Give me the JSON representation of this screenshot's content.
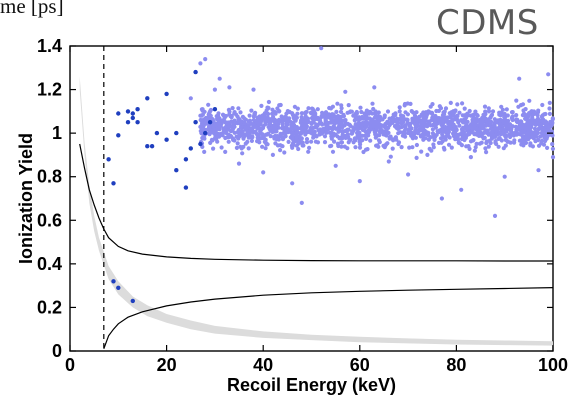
{
  "header": {
    "corner_text": "me [ps]",
    "brand": "CDMS"
  },
  "colors": {
    "band": "#dcdcdc",
    "nuclear_points": "#1f3fbf",
    "electron_points": "#8c8cf0",
    "curve": "#000000",
    "threshold": "#000000"
  },
  "chart_data": {
    "type": "scatter",
    "title": "",
    "xlabel": "Recoil Energy (keV)",
    "ylabel": "Ionization Yield",
    "xlim": [
      0,
      100
    ],
    "ylim": [
      0,
      1.4
    ],
    "xticks": [
      0,
      20,
      40,
      60,
      80,
      100
    ],
    "yticks": [
      0,
      0.2,
      0.4,
      0.6,
      0.8,
      1,
      1.2,
      1.4
    ],
    "xtick_labels": [
      "0",
      "20",
      "40",
      "60",
      "80",
      "100"
    ],
    "ytick_labels": [
      "0",
      "0.2",
      "0.4",
      "0.6",
      "0.8",
      "1",
      "1.2",
      "1.4"
    ],
    "grid": false,
    "legend": "none",
    "threshold_x": 7,
    "nuclear_band": {
      "x": [
        2,
        3,
        4,
        5,
        6,
        8,
        10,
        13,
        16,
        20,
        25,
        30,
        40,
        50,
        60,
        70,
        80,
        90,
        100
      ],
      "y_low": [
        1.2,
        0.9,
        0.68,
        0.55,
        0.46,
        0.33,
        0.26,
        0.2,
        0.16,
        0.13,
        0.1,
        0.08,
        0.06,
        0.05,
        0.04,
        0.035,
        0.03,
        0.027,
        0.025
      ],
      "y_high": [
        1.26,
        0.96,
        0.76,
        0.62,
        0.52,
        0.39,
        0.32,
        0.25,
        0.21,
        0.17,
        0.14,
        0.115,
        0.09,
        0.075,
        0.065,
        0.058,
        0.052,
        0.048,
        0.045
      ]
    },
    "curves": [
      {
        "x": [
          2,
          3,
          4,
          5,
          6,
          7,
          8,
          10,
          12,
          15,
          20,
          25,
          30,
          40,
          50,
          60,
          70,
          80,
          90,
          100
        ],
        "y": [
          0.95,
          0.84,
          0.74,
          0.67,
          0.61,
          0.56,
          0.52,
          0.48,
          0.46,
          0.445,
          0.432,
          0.425,
          0.421,
          0.417,
          0.415,
          0.414,
          0.414,
          0.414,
          0.413,
          0.413
        ]
      },
      {
        "x": [
          7,
          8,
          9,
          10,
          12,
          15,
          20,
          25,
          30,
          40,
          50,
          60,
          70,
          80,
          90,
          100
        ],
        "y": [
          0.01,
          0.07,
          0.1,
          0.125,
          0.155,
          0.18,
          0.207,
          0.225,
          0.238,
          0.256,
          0.267,
          0.274,
          0.279,
          0.283,
          0.287,
          0.291
        ]
      }
    ],
    "series": [
      {
        "points": [
          [
            8,
            0.88
          ],
          [
            9,
            0.77
          ],
          [
            10,
            1.09
          ],
          [
            10,
            0.99
          ],
          [
            12,
            1.05
          ],
          [
            12,
            1.1
          ],
          [
            13,
            1.07
          ],
          [
            13,
            1.09
          ],
          [
            14,
            1.05
          ],
          [
            14,
            1.11
          ],
          [
            16,
            0.94
          ],
          [
            16,
            1.16
          ],
          [
            17,
            0.94
          ],
          [
            18,
            1.0
          ],
          [
            20,
            0.97
          ],
          [
            20,
            1.18
          ],
          [
            22,
            0.83
          ],
          [
            22,
            1.0
          ],
          [
            24,
            0.75
          ],
          [
            24,
            0.88
          ],
          [
            25,
            0.93
          ],
          [
            26,
            1.05
          ],
          [
            26,
            1.28
          ],
          [
            27,
            0.95
          ],
          [
            28,
            1.0
          ],
          [
            29,
            1.05
          ],
          [
            30,
            1.11
          ],
          [
            9,
            0.32
          ],
          [
            10,
            0.29
          ],
          [
            13,
            0.23
          ]
        ]
      },
      {
        "center": 1.03,
        "spread": 0.045,
        "x_range": [
          27,
          100
        ],
        "count": 1800,
        "points": [
          [
            25,
            1.16
          ],
          [
            26,
            1.05
          ],
          [
            27,
            1.08
          ],
          [
            27,
            1.32
          ],
          [
            28,
            1.34
          ],
          [
            29,
            1.1
          ],
          [
            30,
            1.2
          ],
          [
            31,
            1.25
          ],
          [
            33,
            1.21
          ],
          [
            35,
            0.86
          ],
          [
            37,
            0.93
          ],
          [
            40,
            0.82
          ],
          [
            42,
            0.9
          ],
          [
            46,
            0.77
          ],
          [
            48,
            0.68
          ],
          [
            52,
            1.39
          ],
          [
            55,
            0.85
          ],
          [
            60,
            0.78
          ],
          [
            63,
            1.21
          ],
          [
            66,
            0.87
          ],
          [
            70,
            0.81
          ],
          [
            74,
            0.9
          ],
          [
            77,
            0.7
          ],
          [
            81,
            0.74
          ],
          [
            83,
            0.89
          ],
          [
            88,
            0.62
          ],
          [
            90,
            0.8
          ],
          [
            93,
            1.25
          ],
          [
            97,
            0.83
          ],
          [
            99,
            1.27
          ],
          [
            100,
            0.89
          ],
          [
            38,
            1.2
          ],
          [
            57,
            1.19
          ],
          [
            86,
            0.93
          ],
          [
            44,
            0.94
          ],
          [
            68,
            0.95
          ]
        ]
      }
    ]
  }
}
